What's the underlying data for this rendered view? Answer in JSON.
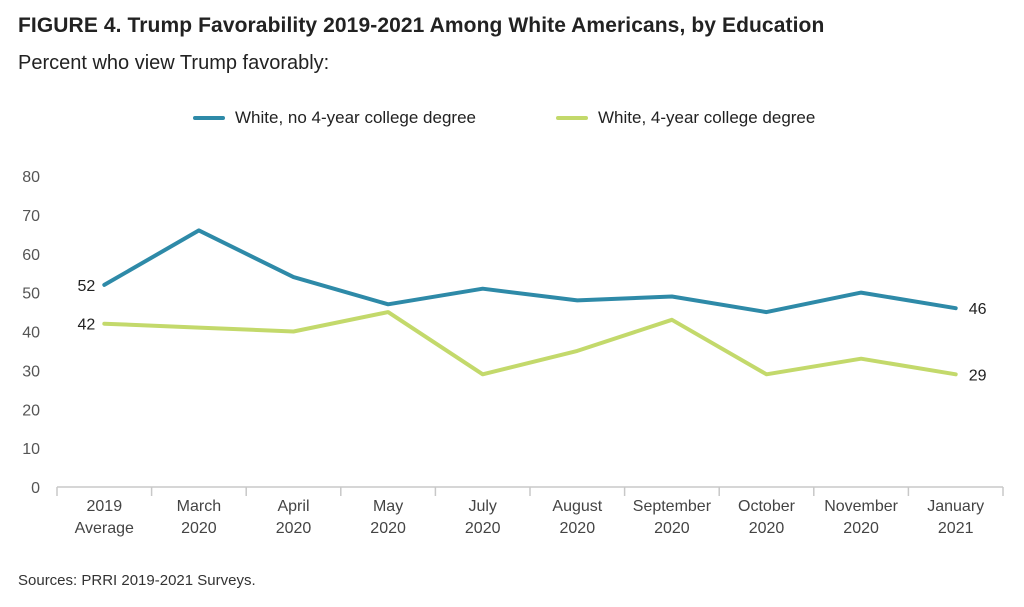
{
  "title": "FIGURE 4. Trump Favorability 2019-2021 Among White Americans, by Education",
  "subtitle": "Percent who view Trump favorably:",
  "source": "Sources: PRRI 2019-2021 Surveys.",
  "chart_data": {
    "type": "line",
    "categories": [
      [
        "2019",
        "Average"
      ],
      [
        "March",
        "2020"
      ],
      [
        "April",
        "2020"
      ],
      [
        "May",
        "2020"
      ],
      [
        "July",
        "2020"
      ],
      [
        "August",
        "2020"
      ],
      [
        "September",
        "2020"
      ],
      [
        "October",
        "2020"
      ],
      [
        "November",
        "2020"
      ],
      [
        "January",
        "2021"
      ]
    ],
    "series": [
      {
        "name": "White, no 4-year college degree",
        "color": "#2e8aa8",
        "values": [
          52,
          66,
          54,
          47,
          51,
          48,
          49,
          45,
          50,
          46
        ],
        "labeled_points": {
          "first": "52",
          "last": "46"
        }
      },
      {
        "name": "White, 4-year college degree",
        "color": "#c3d96b",
        "values": [
          42,
          41,
          40,
          45,
          29,
          35,
          43,
          29,
          33,
          29
        ],
        "labeled_points": {
          "first": "42",
          "last": "29"
        }
      }
    ],
    "ylim": [
      0,
      80
    ],
    "yticks": [
      0,
      10,
      20,
      30,
      40,
      50,
      60,
      70,
      80
    ],
    "grid": false,
    "legend": "top-center"
  }
}
